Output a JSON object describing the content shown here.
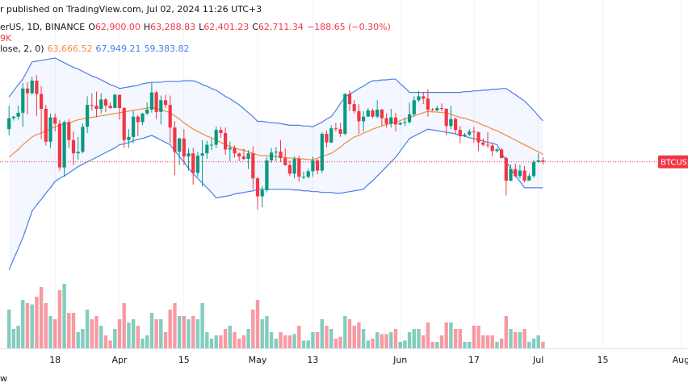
{
  "chart_data": {
    "type": "candlestick",
    "header": "r published on TradingView.com, Jul 02, 2024 11:26 UTC+3",
    "legend": {
      "symbol": "erUS, 1D, BINANCE",
      "ohlc": [
        {
          "key": "O",
          "value": "62,900.00"
        },
        {
          "key": "H",
          "value": "63,288.83"
        },
        {
          "key": "L",
          "value": "62,401.23"
        },
        {
          "key": "C",
          "value": "62,711.34"
        }
      ],
      "change": "−188.65 (−0.30%)",
      "volume": "9K",
      "indicator": "lose, 2, 0)",
      "indicator_values": [
        "63,666.52",
        "67,949.21",
        "59,383.82"
      ]
    },
    "price_label": "BTCUSD",
    "footer": "w",
    "categories": [
      null,
      null,
      null,
      null,
      null,
      null,
      null,
      null,
      null,
      null,
      "18",
      null,
      null,
      null,
      null,
      null,
      null,
      null,
      null,
      null,
      null,
      null,
      null,
      null,
      "Apr",
      null,
      null,
      null,
      null,
      null,
      null,
      null,
      null,
      null,
      null,
      null,
      null,
      null,
      "15",
      null,
      null,
      null,
      null,
      null,
      null,
      null,
      null,
      null,
      null,
      null,
      null,
      null,
      null,
      null,
      "May",
      null,
      null,
      null,
      null,
      null,
      null,
      null,
      null,
      null,
      null,
      null,
      "13",
      null,
      null,
      null,
      null,
      null,
      null,
      null,
      null,
      null,
      null,
      null,
      null,
      null,
      null,
      null,
      null,
      null,
      null,
      "Jun",
      null,
      null,
      null,
      null,
      null,
      null,
      null,
      null,
      null,
      null,
      null,
      null,
      null,
      null,
      null,
      "17",
      null,
      null,
      null,
      null,
      null,
      null,
      null,
      null,
      null,
      null,
      null,
      null,
      null,
      "Jul",
      null,
      null,
      null,
      null,
      null,
      null,
      null,
      null,
      null,
      null,
      null,
      null,
      null,
      "15",
      null,
      null,
      null,
      null,
      null,
      null,
      null,
      null,
      null,
      null,
      null,
      null,
      null,
      null,
      null,
      null,
      "Aug",
      null
    ],
    "open": [
      66900,
      68300,
      68500,
      69000,
      72100,
      71500,
      73100,
      71400,
      69500,
      65300,
      68400,
      67600,
      62000,
      67800,
      65500,
      63800,
      64000,
      67200,
      70000,
      69900,
      69500,
      70700,
      69900,
      69600,
      71300,
      69600,
      65500,
      65900,
      68500,
      67800,
      68900,
      69400,
      71600,
      69100,
      70600,
      70000,
      67100,
      64000,
      65700,
      63400,
      63800,
      61300,
      63500,
      63800,
      64900,
      64900,
      66800,
      66400,
      64300,
      64500,
      63800,
      63400,
      63100,
      63800,
      60600,
      58300,
      59100,
      62900,
      63900,
      64000,
      63200,
      62300,
      61200,
      63100,
      60800,
      60800,
      61500,
      62900,
      61600,
      66300,
      65200,
      67000,
      66900,
      66300,
      71400,
      70100,
      69200,
      67900,
      68500,
      69300,
      68500,
      69400,
      68300,
      67600,
      68400,
      67500,
      67700,
      67800,
      68800,
      70600,
      71100,
      70800,
      69400,
      69300,
      69600,
      69500,
      67300,
      68200,
      66800,
      66000,
      66200,
      66600,
      66500,
      65200,
      64900,
      64800,
      64100,
      64300,
      63200,
      60300,
      61800,
      60900,
      61600,
      60300,
      60900,
      62700,
      62900,
      null,
      null,
      null,
      null,
      null,
      null,
      null,
      null,
      null,
      null,
      null,
      null,
      null,
      null,
      null,
      null,
      null,
      null,
      null,
      null,
      null,
      null,
      null,
      null,
      null,
      null,
      null,
      null,
      null,
      null,
      null
    ],
    "high": [
      69900,
      68600,
      69900,
      72800,
      72900,
      73600,
      73800,
      72400,
      70000,
      68900,
      68900,
      68100,
      68000,
      68200,
      66600,
      65900,
      67600,
      71100,
      71500,
      71700,
      71500,
      70900,
      70300,
      71400,
      71300,
      69700,
      66900,
      69300,
      68700,
      69000,
      70300,
      72800,
      71800,
      71200,
      71300,
      71200,
      67900,
      65800,
      66900,
      64400,
      64500,
      64000,
      65500,
      65400,
      65700,
      67200,
      67200,
      67100,
      65300,
      64800,
      63900,
      64400,
      64200,
      64700,
      60800,
      59600,
      63300,
      64500,
      64600,
      65500,
      64400,
      62900,
      63400,
      63500,
      61500,
      61800,
      63400,
      63100,
      66500,
      66700,
      67400,
      67700,
      67700,
      71500,
      71900,
      70600,
      70100,
      69200,
      69600,
      69500,
      70600,
      69500,
      68900,
      69500,
      69000,
      67800,
      68400,
      70300,
      71100,
      71800,
      71600,
      72000,
      69600,
      69900,
      70200,
      69600,
      69900,
      68400,
      67300,
      66400,
      66900,
      67200,
      66600,
      65700,
      66500,
      65100,
      64500,
      64500,
      63400,
      62400,
      62500,
      62300,
      62200,
      61200,
      63000,
      63800,
      63288.83,
      null,
      null,
      null,
      null,
      null,
      null,
      null,
      null,
      null,
      null,
      null,
      null,
      null,
      null,
      null,
      null,
      null,
      null,
      null,
      null,
      null,
      null,
      null,
      null,
      null,
      null,
      null,
      null,
      null,
      null,
      null
    ],
    "low": [
      66100,
      68000,
      68100,
      67200,
      68800,
      71300,
      68600,
      65600,
      64800,
      64500,
      66600,
      61600,
      60800,
      64500,
      62300,
      63000,
      63800,
      66400,
      69300,
      68400,
      68900,
      69100,
      69500,
      69600,
      68100,
      64500,
      64500,
      65100,
      66000,
      67400,
      68700,
      69000,
      68200,
      67500,
      69600,
      65100,
      61000,
      62300,
      62300,
      61600,
      59800,
      60800,
      59600,
      63100,
      64200,
      64500,
      65800,
      63600,
      62800,
      63300,
      62800,
      62900,
      61800,
      59200,
      56600,
      56900,
      58800,
      62600,
      62800,
      62700,
      62200,
      60900,
      60600,
      60200,
      60500,
      60600,
      60800,
      61100,
      61300,
      64600,
      65100,
      66600,
      65900,
      66100,
      69200,
      68900,
      66300,
      66600,
      68500,
      68300,
      68300,
      67300,
      67100,
      67100,
      66600,
      67400,
      67300,
      67600,
      68500,
      70400,
      70100,
      68500,
      69200,
      69200,
      69200,
      66100,
      66900,
      66300,
      65100,
      65900,
      66000,
      65100,
      64100,
      64700,
      64500,
      63400,
      63900,
      63200,
      58400,
      60200,
      60700,
      60600,
      60100,
      60300,
      60700,
      62600,
      62401.23,
      null,
      null,
      null,
      null,
      null,
      null,
      null,
      null,
      null,
      null,
      null,
      null,
      null,
      null,
      null,
      null,
      null,
      null,
      null,
      null,
      null,
      null,
      null,
      null,
      null,
      null,
      null,
      null,
      null,
      null,
      null
    ],
    "close": [
      68300,
      68500,
      69000,
      72100,
      71500,
      73100,
      71400,
      69500,
      65300,
      68400,
      67600,
      62000,
      67800,
      65500,
      63800,
      64000,
      67200,
      70000,
      69900,
      69500,
      70700,
      69900,
      69600,
      71300,
      69600,
      65500,
      65900,
      68500,
      67800,
      68900,
      69400,
      71600,
      69100,
      70600,
      70000,
      67100,
      64000,
      65700,
      63400,
      63800,
      61300,
      63500,
      63800,
      64900,
      64900,
      66800,
      66400,
      64300,
      64500,
      63800,
      63400,
      63100,
      63800,
      60600,
      58300,
      59100,
      62900,
      63900,
      64000,
      63200,
      62300,
      61200,
      63100,
      60800,
      60800,
      61500,
      62900,
      61600,
      66300,
      65200,
      67000,
      66900,
      66300,
      71400,
      70100,
      69200,
      67900,
      68500,
      69300,
      68500,
      69400,
      68300,
      67600,
      68400,
      67500,
      67700,
      67800,
      68800,
      70600,
      71100,
      70800,
      69400,
      69300,
      69600,
      69500,
      67300,
      68200,
      66800,
      66000,
      66200,
      66600,
      66500,
      65200,
      64900,
      64800,
      64100,
      64300,
      63200,
      60300,
      61800,
      60900,
      61600,
      60300,
      60900,
      62700,
      62900,
      62711.34,
      null,
      null,
      null,
      null,
      null,
      null,
      null,
      null,
      null,
      null,
      null,
      null,
      null,
      null,
      null,
      null,
      null,
      null,
      null,
      null,
      null,
      null,
      null,
      null,
      null,
      null,
      null,
      null,
      null,
      null,
      null
    ],
    "volume": [
      60,
      30,
      35,
      75,
      70,
      68,
      80,
      95,
      70,
      50,
      45,
      90,
      100,
      55,
      55,
      25,
      30,
      60,
      45,
      50,
      35,
      20,
      12,
      30,
      45,
      70,
      40,
      45,
      35,
      15,
      20,
      55,
      45,
      45,
      25,
      60,
      70,
      50,
      50,
      45,
      50,
      45,
      70,
      25,
      15,
      20,
      20,
      30,
      35,
      25,
      15,
      20,
      30,
      60,
      75,
      45,
      50,
      25,
      15,
      25,
      20,
      20,
      22,
      35,
      12,
      12,
      25,
      25,
      45,
      35,
      30,
      15,
      18,
      50,
      45,
      35,
      40,
      30,
      12,
      15,
      25,
      22,
      22,
      25,
      30,
      10,
      12,
      25,
      30,
      30,
      20,
      40,
      10,
      10,
      20,
      40,
      40,
      30,
      30,
      10,
      10,
      35,
      35,
      20,
      20,
      20,
      10,
      15,
      50,
      30,
      25,
      25,
      30,
      10,
      15,
      20,
      10,
      null,
      null,
      null,
      null,
      null,
      null,
      null,
      null,
      null,
      null,
      null,
      null,
      null,
      null,
      null,
      null,
      null,
      null,
      null,
      null,
      null,
      null,
      null,
      null,
      null,
      null,
      null,
      null,
      null,
      null,
      null
    ],
    "bands": [
      {
        "color": "#f7893b",
        "values": [
          63300,
          63800,
          64300,
          64900,
          65400,
          65900,
          66200,
          66400,
          66700,
          66900,
          67200,
          67400,
          67600,
          67700,
          67900,
          68100,
          68200,
          68400,
          68400,
          68500,
          68600,
          68700,
          68800,
          68900,
          69000,
          69100,
          69200,
          69300,
          69400,
          69500,
          69600,
          69700,
          69500,
          69400,
          69200,
          69000,
          68600,
          68200,
          67700,
          67300,
          66900,
          66600,
          66300,
          66000,
          65800,
          65500,
          65200,
          64900,
          64700,
          64500,
          64300,
          64200,
          64000,
          63800,
          63600,
          63500,
          63500,
          63400,
          63400,
          63300,
          63300,
          63200,
          63200,
          63100,
          63100,
          63000,
          63000,
          63200,
          63400,
          63600,
          63800,
          64200,
          64600,
          65100,
          65500,
          65900,
          66100,
          66400,
          66600,
          66900,
          67100,
          67300,
          67500,
          67600,
          67800,
          68000,
          68200,
          68400,
          68600,
          68800,
          69000,
          69200,
          69100,
          69100,
          69000,
          69000,
          68800,
          68600,
          68400,
          68300,
          68100,
          67900,
          67700,
          67400,
          67200,
          66900,
          66700,
          66400,
          66100,
          65800,
          65500,
          65200,
          64900,
          64600,
          64300,
          64000,
          63666.52,
          null,
          null,
          null,
          null,
          null,
          null,
          null,
          null,
          null,
          null,
          null,
          null,
          null,
          null,
          null,
          null,
          null,
          null,
          null,
          null,
          null,
          null,
          null,
          null,
          null,
          null,
          null,
          null,
          null,
          null,
          null
        ]
      },
      {
        "color": "#4a7de8",
        "values": [
          71000,
          71800,
          72600,
          73300,
          74400,
          75500,
          75600,
          75700,
          75800,
          75900,
          76000,
          75700,
          75400,
          75100,
          74800,
          74600,
          74300,
          74000,
          73700,
          73500,
          73200,
          72900,
          72600,
          72400,
          72100,
          72200,
          72300,
          72400,
          72500,
          72700,
          72800,
          72900,
          72900,
          72900,
          73000,
          73000,
          73000,
          73000,
          73100,
          73100,
          73100,
          72900,
          72600,
          72400,
          72100,
          71900,
          71500,
          71100,
          70800,
          70400,
          70000,
          69500,
          69000,
          68500,
          67900,
          67900,
          67800,
          67700,
          67700,
          67600,
          67500,
          67400,
          67400,
          67400,
          67300,
          67300,
          67200,
          67500,
          67800,
          68200,
          68500,
          69300,
          70200,
          71000,
          71400,
          71700,
          72100,
          72400,
          72800,
          73100,
          73100,
          73200,
          73200,
          73300,
          73300,
          72700,
          72200,
          71600,
          71600,
          71600,
          71600,
          71600,
          71600,
          71600,
          71600,
          71600,
          71600,
          71600,
          71600,
          71700,
          71700,
          71800,
          71800,
          71900,
          71900,
          72000,
          72000,
          72100,
          72100,
          71700,
          71300,
          70900,
          70500,
          69900,
          69300,
          68600,
          67949.21,
          null,
          null,
          null,
          null,
          null,
          null,
          null,
          null,
          null,
          null,
          null,
          null,
          null,
          null,
          null,
          null,
          null,
          null,
          null,
          null,
          null,
          null,
          null,
          null,
          null,
          null,
          null,
          null,
          null,
          null,
          null
        ]
      },
      {
        "color": "#4a7de8",
        "values": [
          48900,
          50300,
          51600,
          53000,
          54700,
          56400,
          57200,
          57900,
          58700,
          59400,
          60200,
          60600,
          60900,
          61300,
          61700,
          62100,
          62400,
          62700,
          63000,
          63300,
          63600,
          63900,
          64200,
          64500,
          64900,
          65000,
          65200,
          65400,
          65600,
          65700,
          65900,
          66100,
          65800,
          65500,
          65200,
          64900,
          64100,
          63400,
          62700,
          61900,
          61200,
          60600,
          60000,
          59400,
          58800,
          58100,
          58200,
          58300,
          58400,
          58600,
          58700,
          58800,
          58900,
          59000,
          59200,
          59200,
          59200,
          59200,
          59200,
          59200,
          59200,
          59200,
          59100,
          59100,
          59000,
          59000,
          58900,
          58900,
          58800,
          58800,
          58800,
          58700,
          58700,
          58800,
          58900,
          59000,
          59100,
          59200,
          59800,
          60300,
          60900,
          61500,
          62100,
          62700,
          63300,
          64100,
          64900,
          65700,
          66000,
          66300,
          66600,
          66900,
          66800,
          66700,
          66600,
          66500,
          66400,
          66300,
          66100,
          66000,
          65800,
          65700,
          65500,
          65400,
          65200,
          65100,
          64900,
          63900,
          62800,
          61800,
          61000,
          60200,
          59400,
          59400,
          59400,
          59400,
          59383.82,
          null,
          null,
          null,
          null,
          null,
          null,
          null,
          null,
          null,
          null,
          null,
          null,
          null,
          null,
          null,
          null,
          null,
          null,
          null,
          null,
          null,
          null,
          null,
          null,
          null,
          null,
          null,
          null,
          null,
          null,
          null
        ]
      }
    ],
    "band_fill": "#2962ff",
    "up_color": "#089981",
    "down_color": "#f23645",
    "ylim": [
      38850,
      83430
    ],
    "y2lim": [
      0,
      540
    ],
    "grid": true
  }
}
